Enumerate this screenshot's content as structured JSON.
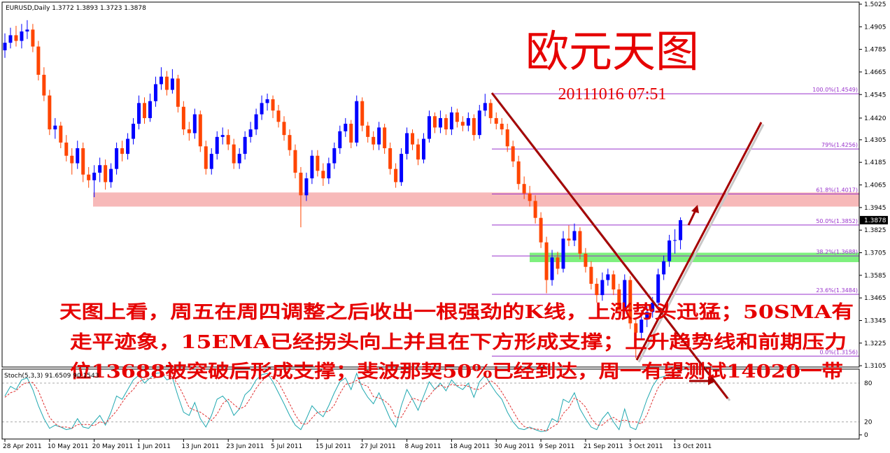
{
  "chart_data": [
    {
      "type": "candlestick",
      "header": "EURUSD,Daily  1.3772 1.3893 1.3723 1.3878",
      "title": "欧元天图",
      "subtitle": "20111016 07:51",
      "annotation": [
        "天图上看，周五在周四调整之后收出一根强劲的K线，上涨势头迅猛；50SMA有",
        "走平迹象，15EMA已经拐头向上并且在下方形成支撑；上升趋势线和前期压力",
        "位13688被突破后形成支撑；斐波那契50%已经到达，周一有望测试14020一带"
      ],
      "x": [
        "28 Apr 2011",
        null,
        null,
        null,
        null,
        null,
        null,
        null,
        "10 May 2011",
        null,
        null,
        null,
        null,
        null,
        null,
        null,
        "20 May 2011",
        null,
        null,
        null,
        null,
        null,
        null,
        null,
        "1 Jun 2011",
        null,
        null,
        null,
        null,
        null,
        null,
        null,
        "13 Jun 2011",
        null,
        null,
        null,
        null,
        null,
        null,
        null,
        "23 Jun 2011",
        null,
        null,
        null,
        null,
        null,
        null,
        null,
        "5 Jul 2011",
        null,
        null,
        null,
        null,
        null,
        null,
        null,
        "15 Jul 2011",
        null,
        null,
        null,
        null,
        null,
        null,
        null,
        "27 Jul 2011",
        null,
        null,
        null,
        null,
        null,
        null,
        null,
        "8 Aug 2011",
        null,
        null,
        null,
        null,
        null,
        null,
        null,
        "18 Aug 2011",
        null,
        null,
        null,
        null,
        null,
        null,
        null,
        "30 Aug 2011",
        null,
        null,
        null,
        null,
        null,
        null,
        null,
        "9 Sep 2011",
        null,
        null,
        null,
        null,
        null,
        null,
        null,
        "21 Sep 2011",
        null,
        null,
        null,
        null,
        null,
        null,
        null,
        "3 Oct 2011",
        null,
        null,
        null,
        null,
        null,
        null,
        null,
        "13 Oct 2011",
        null
      ],
      "ohlc": [
        [
          1.478,
          1.487,
          1.474,
          1.482
        ],
        [
          1.482,
          1.49,
          1.479,
          1.486
        ],
        [
          1.486,
          1.491,
          1.48,
          1.483
        ],
        [
          1.483,
          1.492,
          1.479,
          1.488
        ],
        [
          1.488,
          1.494,
          1.484,
          1.489
        ],
        [
          1.489,
          1.492,
          1.477,
          1.48
        ],
        [
          1.48,
          1.483,
          1.462,
          1.465
        ],
        [
          1.465,
          1.469,
          1.451,
          1.454
        ],
        [
          1.454,
          1.457,
          1.433,
          1.436
        ],
        [
          1.436,
          1.442,
          1.431,
          1.438
        ],
        [
          1.438,
          1.44,
          1.426,
          1.429
        ],
        [
          1.429,
          1.433,
          1.419,
          1.422
        ],
        [
          1.422,
          1.426,
          1.412,
          1.418
        ],
        [
          1.418,
          1.43,
          1.415,
          1.426
        ],
        [
          1.426,
          1.429,
          1.408,
          1.412
        ],
        [
          1.412,
          1.416,
          1.405,
          1.409
        ],
        [
          1.409,
          1.417,
          1.4,
          1.413
        ],
        [
          1.413,
          1.421,
          1.408,
          1.417
        ],
        [
          1.417,
          1.42,
          1.404,
          1.408
        ],
        [
          1.408,
          1.418,
          1.405,
          1.415
        ],
        [
          1.415,
          1.429,
          1.412,
          1.426
        ],
        [
          1.426,
          1.43,
          1.419,
          1.423
        ],
        [
          1.423,
          1.434,
          1.42,
          1.431
        ],
        [
          1.431,
          1.442,
          1.428,
          1.439
        ],
        [
          1.439,
          1.454,
          1.436,
          1.45
        ],
        [
          1.45,
          1.453,
          1.439,
          1.442
        ],
        [
          1.442,
          1.455,
          1.44,
          1.451
        ],
        [
          1.451,
          1.464,
          1.448,
          1.46
        ],
        [
          1.46,
          1.469,
          1.457,
          1.464
        ],
        [
          1.464,
          1.467,
          1.454,
          1.457
        ],
        [
          1.457,
          1.468,
          1.455,
          1.463
        ],
        [
          1.463,
          1.465,
          1.445,
          1.448
        ],
        [
          1.448,
          1.451,
          1.433,
          1.436
        ],
        [
          1.436,
          1.44,
          1.43,
          1.434
        ],
        [
          1.434,
          1.447,
          1.431,
          1.444
        ],
        [
          1.444,
          1.446,
          1.424,
          1.427
        ],
        [
          1.427,
          1.43,
          1.412,
          1.415
        ],
        [
          1.415,
          1.426,
          1.412,
          1.423
        ],
        [
          1.423,
          1.435,
          1.42,
          1.432
        ],
        [
          1.432,
          1.437,
          1.428,
          1.433
        ],
        [
          1.433,
          1.436,
          1.425,
          1.428
        ],
        [
          1.428,
          1.431,
          1.415,
          1.418
        ],
        [
          1.418,
          1.426,
          1.415,
          1.423
        ],
        [
          1.423,
          1.435,
          1.42,
          1.432
        ],
        [
          1.432,
          1.44,
          1.429,
          1.436
        ],
        [
          1.436,
          1.447,
          1.433,
          1.444
        ],
        [
          1.444,
          1.454,
          1.441,
          1.45
        ],
        [
          1.45,
          1.455,
          1.446,
          1.452
        ],
        [
          1.452,
          1.454,
          1.442,
          1.446
        ],
        [
          1.446,
          1.449,
          1.437,
          1.44
        ],
        [
          1.44,
          1.443,
          1.43,
          1.433
        ],
        [
          1.433,
          1.436,
          1.422,
          1.425
        ],
        [
          1.425,
          1.428,
          1.41,
          1.413
        ],
        [
          1.413,
          1.416,
          1.384,
          1.401
        ],
        [
          1.401,
          1.413,
          1.398,
          1.41
        ],
        [
          1.41,
          1.425,
          1.407,
          1.422
        ],
        [
          1.422,
          1.425,
          1.411,
          1.414
        ],
        [
          1.414,
          1.418,
          1.406,
          1.41
        ],
        [
          1.41,
          1.421,
          1.407,
          1.418
        ],
        [
          1.418,
          1.429,
          1.415,
          1.426
        ],
        [
          1.426,
          1.438,
          1.423,
          1.435
        ],
        [
          1.435,
          1.442,
          1.432,
          1.439
        ],
        [
          1.439,
          1.441,
          1.426,
          1.429
        ],
        [
          1.429,
          1.454,
          1.427,
          1.451
        ],
        [
          1.451,
          1.453,
          1.435,
          1.438
        ],
        [
          1.438,
          1.44,
          1.429,
          1.432
        ],
        [
          1.432,
          1.435,
          1.425,
          1.428
        ],
        [
          1.428,
          1.44,
          1.425,
          1.437
        ],
        [
          1.437,
          1.439,
          1.423,
          1.426
        ],
        [
          1.426,
          1.429,
          1.412,
          1.415
        ],
        [
          1.415,
          1.418,
          1.405,
          1.408
        ],
        [
          1.408,
          1.426,
          1.406,
          1.423
        ],
        [
          1.423,
          1.437,
          1.42,
          1.434
        ],
        [
          1.434,
          1.436,
          1.425,
          1.428
        ],
        [
          1.428,
          1.431,
          1.417,
          1.42
        ],
        [
          1.42,
          1.434,
          1.418,
          1.431
        ],
        [
          1.431,
          1.446,
          1.429,
          1.443
        ],
        [
          1.443,
          1.445,
          1.434,
          1.437
        ],
        [
          1.437,
          1.446,
          1.434,
          1.442
        ],
        [
          1.442,
          1.444,
          1.433,
          1.436
        ],
        [
          1.436,
          1.448,
          1.433,
          1.445
        ],
        [
          1.445,
          1.447,
          1.437,
          1.44
        ],
        [
          1.44,
          1.443,
          1.435,
          1.438
        ],
        [
          1.438,
          1.445,
          1.435,
          1.442
        ],
        [
          1.442,
          1.444,
          1.43,
          1.433
        ],
        [
          1.433,
          1.449,
          1.431,
          1.446
        ],
        [
          1.446,
          1.4549,
          1.443,
          1.45
        ],
        [
          1.45,
          1.452,
          1.439,
          1.442
        ],
        [
          1.442,
          1.445,
          1.436,
          1.439
        ],
        [
          1.439,
          1.442,
          1.433,
          1.436
        ],
        [
          1.436,
          1.439,
          1.424,
          1.427
        ],
        [
          1.427,
          1.43,
          1.416,
          1.419
        ],
        [
          1.419,
          1.422,
          1.404,
          1.407
        ],
        [
          1.407,
          1.411,
          1.399,
          1.402
        ],
        [
          1.402,
          1.406,
          1.395,
          1.398
        ],
        [
          1.398,
          1.401,
          1.386,
          1.389
        ],
        [
          1.389,
          1.392,
          1.373,
          1.376
        ],
        [
          1.376,
          1.379,
          1.349,
          1.356
        ],
        [
          1.356,
          1.372,
          1.353,
          1.368
        ],
        [
          1.368,
          1.371,
          1.359,
          1.362
        ],
        [
          1.362,
          1.382,
          1.36,
          1.378
        ],
        [
          1.378,
          1.385,
          1.374,
          1.377
        ],
        [
          1.377,
          1.386,
          1.374,
          1.382
        ],
        [
          1.382,
          1.384,
          1.367,
          1.37
        ],
        [
          1.37,
          1.373,
          1.36,
          1.363
        ],
        [
          1.363,
          1.366,
          1.351,
          1.354
        ],
        [
          1.354,
          1.357,
          1.344,
          1.348
        ],
        [
          1.348,
          1.36,
          1.345,
          1.356
        ],
        [
          1.356,
          1.362,
          1.353,
          1.359
        ],
        [
          1.359,
          1.361,
          1.348,
          1.351
        ],
        [
          1.351,
          1.354,
          1.337,
          1.34
        ],
        [
          1.34,
          1.359,
          1.338,
          1.356
        ],
        [
          1.356,
          1.358,
          1.33,
          1.333
        ],
        [
          1.333,
          1.336,
          1.3145,
          1.328
        ],
        [
          1.328,
          1.338,
          1.325,
          1.335
        ],
        [
          1.335,
          1.342,
          1.331,
          1.339
        ],
        [
          1.339,
          1.347,
          1.336,
          1.344
        ],
        [
          1.344,
          1.362,
          1.341,
          1.359
        ],
        [
          1.359,
          1.369,
          1.356,
          1.366
        ],
        [
          1.366,
          1.38,
          1.363,
          1.377
        ],
        [
          1.377,
          1.383,
          1.37,
          1.3772
        ],
        [
          1.3772,
          1.3893,
          1.3723,
          1.3878
        ]
      ],
      "up_color": "#0000ff",
      "down_color": "#ff4500",
      "ylim": [
        1.3098,
        1.5036
      ],
      "yticks": [
        1.3105,
        1.3225,
        1.3345,
        1.3465,
        1.3585,
        1.3705,
        1.3825,
        1.3945,
        1.4065,
        1.4185,
        1.4305,
        {
          "value": 1.442,
          "label": "1.4420"
        },
        1.4545,
        1.4665,
        1.4785,
        1.4905,
        1.5025
      ],
      "fib_color": "#9932cc",
      "fib_levels": [
        {
          "value": 1.4549,
          "label": "100.0%(1.4549)"
        },
        {
          "value": 1.4256,
          "label": "79%(1.4256)"
        },
        {
          "value": 1.4017,
          "label": "61.8%(1.4017)"
        },
        {
          "value": 1.3852,
          "label": "50.0%(1.3852)"
        },
        {
          "value": 1.3688,
          "label": "38.2%(1.3688)"
        },
        {
          "value": 1.3484,
          "label": "23.6%(1.3484)"
        },
        {
          "value": 1.3156,
          "label": "0.0%(1.3156)"
        }
      ],
      "zones": [
        {
          "ylim": [
            1.395,
            1.4025
          ],
          "color": "#f7b9b9"
        },
        {
          "ylim": [
            1.3655,
            1.3705
          ],
          "color": "#7ef07e"
        }
      ]
    },
    {
      "type": "line",
      "title": "Stoch(5,3,3) 91.6509 90.1543",
      "ylim": [
        0,
        100
      ],
      "yticks": [
        0,
        20,
        80
      ],
      "grid": true,
      "series": [
        {
          "color": "#20a8b0",
          "values": [
            60,
            75,
            70,
            85,
            88,
            70,
            45,
            25,
            10,
            15,
            12,
            8,
            10,
            25,
            12,
            10,
            20,
            30,
            15,
            35,
            60,
            55,
            70,
            85,
            92,
            80,
            88,
            95,
            96,
            85,
            88,
            60,
            35,
            30,
            50,
            25,
            12,
            30,
            55,
            60,
            50,
            30,
            40,
            62,
            70,
            85,
            93,
            95,
            82,
            65,
            48,
            30,
            15,
            8,
            25,
            45,
            35,
            28,
            45,
            65,
            82,
            88,
            70,
            95,
            72,
            58,
            48,
            65,
            45,
            25,
            12,
            45,
            70,
            55,
            38,
            60,
            82,
            70,
            80,
            68,
            85,
            75,
            70,
            80,
            58,
            82,
            92,
            78,
            65,
            55,
            35,
            20,
            10,
            8,
            12,
            8,
            5,
            6,
            25,
            20,
            55,
            50,
            65,
            40,
            25,
            12,
            8,
            25,
            35,
            20,
            8,
            40,
            12,
            8,
            30,
            55,
            75,
            88,
            90,
            94,
            88,
            91.6509
          ]
        },
        {
          "color": "#e03030",
          "dashed": true,
          "values": [
            58,
            65,
            68,
            77,
            81,
            81,
            68,
            47,
            27,
            17,
            12,
            12,
            10,
            16,
            16,
            16,
            14,
            20,
            18,
            27,
            37,
            50,
            62,
            70,
            82,
            86,
            87,
            88,
            93,
            92,
            90,
            78,
            61,
            42,
            38,
            35,
            29,
            22,
            32,
            48,
            55,
            47,
            40,
            44,
            57,
            72,
            83,
            91,
            90,
            81,
            65,
            48,
            31,
            18,
            16,
            26,
            35,
            36,
            36,
            46,
            64,
            78,
            80,
            84,
            78,
            75,
            59,
            57,
            53,
            45,
            27,
            27,
            42,
            57,
            54,
            51,
            60,
            71,
            77,
            73,
            78,
            76,
            77,
            75,
            71,
            70,
            77,
            84,
            78,
            66,
            52,
            37,
            22,
            13,
            10,
            9,
            8,
            6,
            12,
            17,
            33,
            42,
            57,
            52,
            43,
            26,
            15,
            15,
            23,
            27,
            21,
            23,
            20,
            20,
            17,
            31,
            53,
            73,
            84,
            91,
            91,
            90.1543
          ]
        }
      ]
    }
  ]
}
